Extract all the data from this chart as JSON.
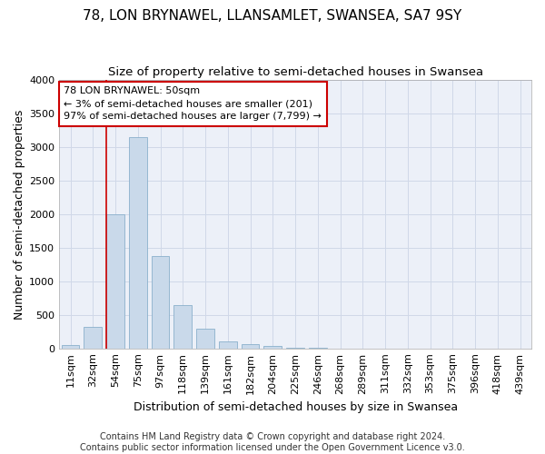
{
  "title": "78, LON BRYNAWEL, LLANSAMLET, SWANSEA, SA7 9SY",
  "subtitle": "Size of property relative to semi-detached houses in Swansea",
  "xlabel": "Distribution of semi-detached houses by size in Swansea",
  "ylabel": "Number of semi-detached properties",
  "categories": [
    "11sqm",
    "32sqm",
    "54sqm",
    "75sqm",
    "97sqm",
    "118sqm",
    "139sqm",
    "161sqm",
    "182sqm",
    "204sqm",
    "225sqm",
    "246sqm",
    "268sqm",
    "289sqm",
    "311sqm",
    "332sqm",
    "353sqm",
    "375sqm",
    "396sqm",
    "418sqm",
    "439sqm"
  ],
  "values": [
    50,
    320,
    2000,
    3150,
    1380,
    640,
    300,
    110,
    70,
    40,
    10,
    5,
    2,
    1,
    0,
    0,
    0,
    0,
    0,
    0,
    0
  ],
  "bar_color": "#c9d9ea",
  "bar_edge_color": "#8ab0cc",
  "vline_index": 2,
  "vline_color": "#cc0000",
  "annotation_text": "78 LON BRYNAWEL: 50sqm\n← 3% of semi-detached houses are smaller (201)\n97% of semi-detached houses are larger (7,799) →",
  "annotation_box_color": "#ffffff",
  "annotation_box_edge": "#cc0000",
  "ylim": [
    0,
    4000
  ],
  "yticks": [
    0,
    500,
    1000,
    1500,
    2000,
    2500,
    3000,
    3500,
    4000
  ],
  "grid_color": "#d0d8e8",
  "background_color": "#ecf0f8",
  "footer": "Contains HM Land Registry data © Crown copyright and database right 2024.\nContains public sector information licensed under the Open Government Licence v3.0.",
  "title_fontsize": 11,
  "subtitle_fontsize": 9.5,
  "xlabel_fontsize": 9,
  "ylabel_fontsize": 9,
  "annotation_fontsize": 8,
  "tick_fontsize": 8
}
